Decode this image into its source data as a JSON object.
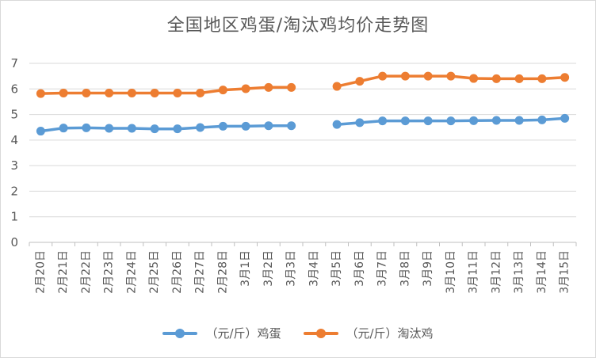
{
  "chart_data": {
    "type": "line",
    "title": "全国地区鸡蛋/淘汰鸡均价走势图",
    "xlabel": "",
    "ylabel": "",
    "ylim": [
      0,
      7
    ],
    "yticks": [
      "0",
      "1",
      "2",
      "3",
      "4",
      "5",
      "6",
      "7"
    ],
    "grid": "horizontal",
    "legend_position": "bottom",
    "categories": [
      "2月20日",
      "2月21日",
      "2月22日",
      "2月23日",
      "2月24日",
      "2月25日",
      "2月26日",
      "2月27日",
      "2月28日",
      "3月1日",
      "3月2日",
      "3月3日",
      "3月4日",
      "3月5日",
      "3月6日",
      "3月7日",
      "3月8日",
      "3月9日",
      "3月10日",
      "3月11日",
      "3月12日",
      "3月13日",
      "3月14日",
      "3月15日"
    ],
    "series": [
      {
        "name": "（元/斤）鸡蛋",
        "color": "#5b9bd5",
        "values": [
          4.35,
          4.47,
          4.48,
          4.46,
          4.46,
          4.44,
          4.44,
          4.49,
          4.54,
          4.54,
          4.56,
          4.56,
          null,
          4.61,
          4.68,
          4.75,
          4.75,
          4.75,
          4.75,
          4.76,
          4.77,
          4.77,
          4.79,
          4.85
        ]
      },
      {
        "name": "（元/斤）淘汰鸡",
        "color": "#ed7d31",
        "values": [
          5.82,
          5.84,
          5.84,
          5.84,
          5.84,
          5.84,
          5.84,
          5.84,
          5.96,
          6.01,
          6.06,
          6.06,
          null,
          6.1,
          6.3,
          6.5,
          6.5,
          6.5,
          6.5,
          6.41,
          6.4,
          6.4,
          6.4,
          6.45
        ]
      }
    ]
  }
}
